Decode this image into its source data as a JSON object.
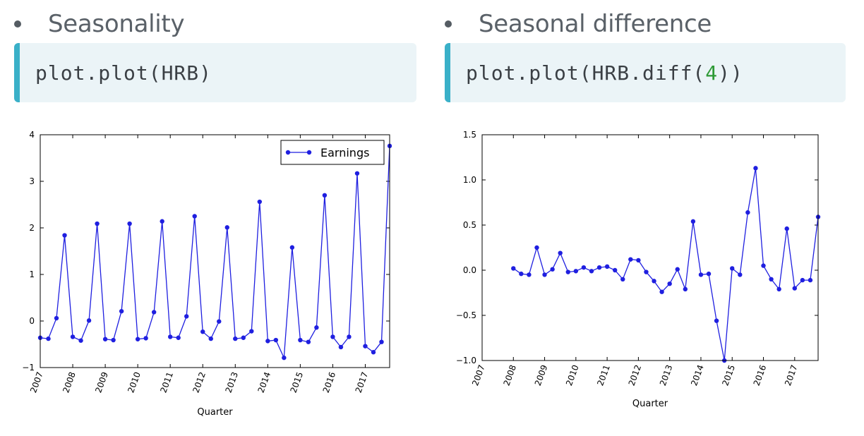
{
  "left": {
    "bullet": "Seasonality",
    "code": "plot.plot(HRB)"
  },
  "right": {
    "bullet": "Seasonal difference",
    "code_prefix": "plot.plot(HRB.diff(",
    "code_arg": "4",
    "code_suffix": "))"
  },
  "colors": {
    "line": "#1f1fe0",
    "code_accent": "#3ab0c8",
    "code_bg": "#ebf4f7",
    "code_number": "#2e9a36"
  },
  "chart_data": [
    {
      "type": "line",
      "xlabel": "Quarter",
      "ylabel": "",
      "xlim": [
        2007.0,
        2017.75
      ],
      "ylim": [
        -1,
        4
      ],
      "yticks": [
        -1,
        0,
        1,
        2,
        3,
        4
      ],
      "ytick_labels": [
        "−1",
        "0",
        "1",
        "2",
        "3",
        "4"
      ],
      "xticks": [
        2007,
        2008,
        2009,
        2010,
        2011,
        2012,
        2013,
        2014,
        2015,
        2016,
        2017
      ],
      "xtick_labels": [
        "2007",
        "2008",
        "2009",
        "2010",
        "2011",
        "2012",
        "2013",
        "2014",
        "2015",
        "2016",
        "2017"
      ],
      "legend": "top-right",
      "grid": false,
      "series": [
        {
          "name": "Earnings",
          "x": [
            2007.0,
            2007.25,
            2007.5,
            2007.75,
            2008.0,
            2008.25,
            2008.5,
            2008.75,
            2009.0,
            2009.25,
            2009.5,
            2009.75,
            2010.0,
            2010.25,
            2010.5,
            2010.75,
            2011.0,
            2011.25,
            2011.5,
            2011.75,
            2012.0,
            2012.25,
            2012.5,
            2012.75,
            2013.0,
            2013.25,
            2013.5,
            2013.75,
            2014.0,
            2014.25,
            2014.5,
            2014.75,
            2015.0,
            2015.25,
            2015.5,
            2015.75,
            2016.0,
            2016.25,
            2016.5,
            2016.75,
            2017.0,
            2017.25,
            2017.5,
            2017.75
          ],
          "values": [
            -0.36,
            -0.38,
            0.06,
            1.84,
            -0.34,
            -0.42,
            0.01,
            2.09,
            -0.39,
            -0.41,
            0.21,
            2.09,
            -0.39,
            -0.37,
            0.19,
            2.14,
            -0.34,
            -0.36,
            0.1,
            2.25,
            -0.23,
            -0.38,
            -0.01,
            2.01,
            -0.38,
            -0.36,
            -0.22,
            2.56,
            -0.43,
            -0.41,
            -0.79,
            1.58,
            -0.41,
            -0.45,
            -0.14,
            2.7,
            -0.34,
            -0.56,
            -0.34,
            3.17,
            -0.54,
            -0.67,
            -0.45,
            3.76
          ]
        }
      ]
    },
    {
      "type": "line",
      "xlabel": "Quarter",
      "ylabel": "",
      "xlim": [
        2007.0,
        2017.75
      ],
      "ylim": [
        -1.0,
        1.5
      ],
      "yticks": [
        -1.0,
        -0.5,
        0.0,
        0.5,
        1.0,
        1.5
      ],
      "ytick_labels": [
        "−1.0",
        "−0.5",
        "0.0",
        "0.5",
        "1.0",
        "1.5"
      ],
      "xticks": [
        2007,
        2008,
        2009,
        2010,
        2011,
        2012,
        2013,
        2014,
        2015,
        2016,
        2017
      ],
      "xtick_labels": [
        "2007",
        "2008",
        "2009",
        "2010",
        "2011",
        "2012",
        "2013",
        "2014",
        "2015",
        "2016",
        "2017"
      ],
      "grid": false,
      "series": [
        {
          "x": [
            2008.0,
            2008.25,
            2008.5,
            2008.75,
            2009.0,
            2009.25,
            2009.5,
            2009.75,
            2010.0,
            2010.25,
            2010.5,
            2010.75,
            2011.0,
            2011.25,
            2011.5,
            2011.75,
            2012.0,
            2012.25,
            2012.5,
            2012.75,
            2013.0,
            2013.25,
            2013.5,
            2013.75,
            2014.0,
            2014.25,
            2014.5,
            2014.75,
            2015.0,
            2015.25,
            2015.5,
            2015.75,
            2016.0,
            2016.25,
            2016.5,
            2016.75,
            2017.0,
            2017.25,
            2017.5,
            2017.75
          ],
          "values": [
            0.02,
            -0.04,
            -0.05,
            0.25,
            -0.05,
            0.01,
            0.19,
            -0.02,
            -0.01,
            0.03,
            -0.01,
            0.03,
            0.04,
            0.0,
            -0.1,
            0.12,
            0.11,
            -0.02,
            -0.12,
            -0.24,
            -0.15,
            0.01,
            -0.21,
            0.54,
            -0.05,
            -0.04,
            -0.56,
            -1.0,
            0.02,
            -0.05,
            0.64,
            1.13,
            0.05,
            -0.1,
            -0.21,
            0.46,
            -0.2,
            -0.11,
            -0.11,
            0.59
          ]
        }
      ]
    }
  ]
}
